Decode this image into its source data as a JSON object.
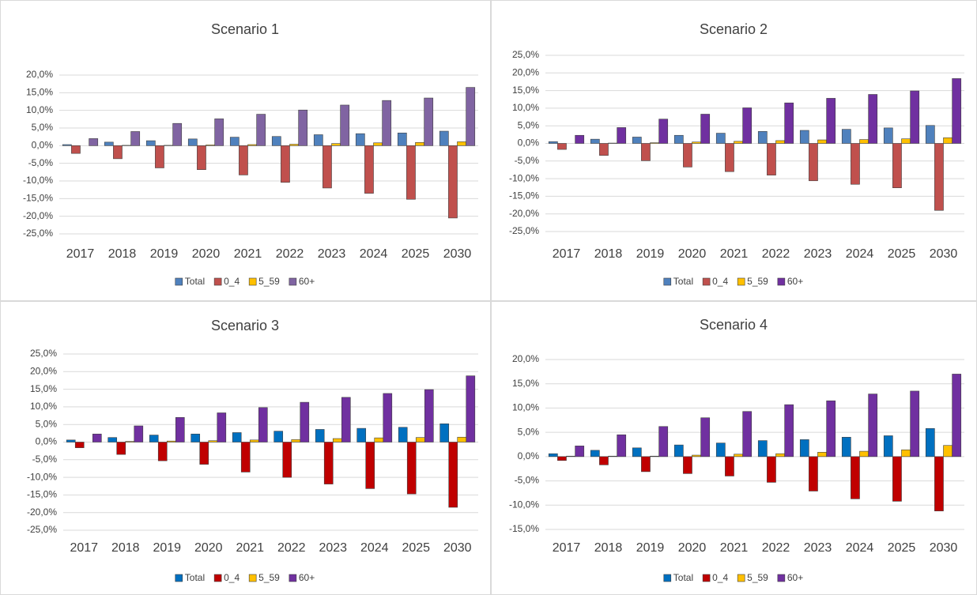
{
  "chart_data": [
    {
      "type": "bar",
      "title": "Scenario 1",
      "categories": [
        "2017",
        "2018",
        "2019",
        "2020",
        "2021",
        "2022",
        "2023",
        "2024",
        "2025",
        "2030"
      ],
      "series": [
        {
          "name": "Total",
          "color": "#4f81bd",
          "values": [
            0.3,
            1.0,
            1.4,
            1.9,
            2.4,
            2.6,
            3.1,
            3.4,
            3.6,
            4.1
          ]
        },
        {
          "name": "0_4",
          "color": "#c0504d",
          "values": [
            -2.2,
            -3.7,
            -6.3,
            -6.8,
            -8.3,
            -10.4,
            -12.0,
            -13.5,
            -15.2,
            -20.5
          ]
        },
        {
          "name": "5_59",
          "color": "#ffc000",
          "values": [
            0.0,
            0.1,
            0.1,
            0.2,
            0.3,
            0.4,
            0.6,
            0.8,
            0.9,
            1.1
          ]
        },
        {
          "name": "60+",
          "color": "#8064a2",
          "values": [
            2.0,
            4.0,
            6.3,
            7.6,
            8.9,
            10.1,
            11.5,
            12.8,
            13.5,
            16.5
          ]
        }
      ],
      "ylim": [
        -25,
        20
      ],
      "yticks": [
        {
          "value": -25,
          "label": "-25,0%"
        },
        {
          "value": -20,
          "label": "-20,0%"
        },
        {
          "value": -15,
          "label": "-15,0%"
        },
        {
          "value": -10,
          "label": "-10,0%"
        },
        {
          "value": -5,
          "label": "-5,0%"
        },
        {
          "value": 0,
          "label": "0,0%"
        },
        {
          "value": 5,
          "label": "5,0%"
        },
        {
          "value": 10,
          "label": "10,0%"
        },
        {
          "value": 15,
          "label": "15,0%"
        },
        {
          "value": 20,
          "label": "20,0%"
        }
      ],
      "grid": true,
      "legend": "bottom"
    },
    {
      "type": "bar",
      "title": "Scenario 2",
      "categories": [
        "2017",
        "2018",
        "2019",
        "2020",
        "2021",
        "2022",
        "2023",
        "2024",
        "2025",
        "2030"
      ],
      "series": [
        {
          "name": "Total",
          "color": "#4f81bd",
          "values": [
            0.5,
            1.2,
            1.8,
            2.3,
            2.9,
            3.4,
            3.7,
            4.0,
            4.4,
            5.1
          ]
        },
        {
          "name": "0_4",
          "color": "#c0504d",
          "values": [
            -1.7,
            -3.4,
            -4.9,
            -6.7,
            -8.0,
            -9.0,
            -10.6,
            -11.6,
            -12.6,
            -19.0
          ]
        },
        {
          "name": "5_59",
          "color": "#ffc000",
          "values": [
            0.0,
            0.1,
            0.2,
            0.4,
            0.6,
            0.8,
            1.0,
            1.1,
            1.3,
            1.6
          ]
        },
        {
          "name": "60+",
          "color": "#7030a0",
          "values": [
            2.3,
            4.5,
            6.9,
            8.3,
            10.1,
            11.5,
            12.8,
            13.9,
            14.9,
            18.4
          ]
        }
      ],
      "ylim": [
        -25,
        25
      ],
      "yticks": [
        {
          "value": -25,
          "label": "-25,0%"
        },
        {
          "value": -20,
          "label": "-20,0%"
        },
        {
          "value": -15,
          "label": "-15,0%"
        },
        {
          "value": -10,
          "label": "-10,0%"
        },
        {
          "value": -5,
          "label": "-5,0%"
        },
        {
          "value": 0,
          "label": "0,0%"
        },
        {
          "value": 5,
          "label": "5,0%"
        },
        {
          "value": 10,
          "label": "10,0%"
        },
        {
          "value": 15,
          "label": "15,0%"
        },
        {
          "value": 20,
          "label": "20,0%"
        },
        {
          "value": 25,
          "label": "25,0%"
        }
      ],
      "grid": true,
      "legend": "bottom"
    },
    {
      "type": "bar",
      "title": "Scenario 3",
      "categories": [
        "2017",
        "2018",
        "2019",
        "2020",
        "2021",
        "2022",
        "2023",
        "2024",
        "2025",
        "2030"
      ],
      "series": [
        {
          "name": "Total",
          "color": "#0070c0",
          "values": [
            0.6,
            1.3,
            2.0,
            2.3,
            2.7,
            3.1,
            3.6,
            3.9,
            4.2,
            5.2
          ]
        },
        {
          "name": "0_4",
          "color": "#c00000",
          "values": [
            -1.6,
            -3.5,
            -5.3,
            -6.3,
            -8.5,
            -10.0,
            -11.9,
            -13.2,
            -14.7,
            -18.5
          ]
        },
        {
          "name": "5_59",
          "color": "#ffc000",
          "values": [
            0.0,
            0.2,
            0.3,
            0.4,
            0.6,
            0.7,
            1.0,
            1.2,
            1.3,
            1.4
          ]
        },
        {
          "name": "60+",
          "color": "#7030a0",
          "values": [
            2.3,
            4.6,
            7.0,
            8.3,
            9.8,
            11.3,
            12.7,
            13.8,
            14.9,
            18.8
          ]
        }
      ],
      "ylim": [
        -25,
        25
      ],
      "yticks": [
        {
          "value": -25,
          "label": "-25,0%"
        },
        {
          "value": -20,
          "label": "-20,0%"
        },
        {
          "value": -15,
          "label": "-15,0%"
        },
        {
          "value": -10,
          "label": "-10,0%"
        },
        {
          "value": -5,
          "label": "-5,0%"
        },
        {
          "value": 0,
          "label": "0,0%"
        },
        {
          "value": 5,
          "label": "5,0%"
        },
        {
          "value": 10,
          "label": "10,0%"
        },
        {
          "value": 15,
          "label": "15,0%"
        },
        {
          "value": 20,
          "label": "20,0%"
        },
        {
          "value": 25,
          "label": "25,0%"
        }
      ],
      "grid": true,
      "legend": "bottom"
    },
    {
      "type": "bar",
      "title": "Scenario 4",
      "categories": [
        "2017",
        "2018",
        "2019",
        "2020",
        "2021",
        "2022",
        "2023",
        "2024",
        "2025",
        "2030"
      ],
      "series": [
        {
          "name": "Total",
          "color": "#0070c0",
          "values": [
            0.6,
            1.3,
            1.8,
            2.4,
            2.8,
            3.3,
            3.5,
            4.0,
            4.3,
            5.8
          ]
        },
        {
          "name": "0_4",
          "color": "#c00000",
          "values": [
            -0.8,
            -1.7,
            -3.1,
            -3.5,
            -4.0,
            -5.3,
            -7.1,
            -8.7,
            -9.2,
            -11.2
          ]
        },
        {
          "name": "5_59",
          "color": "#ffc000",
          "values": [
            0.1,
            0.1,
            0.1,
            0.3,
            0.5,
            0.6,
            0.9,
            1.1,
            1.4,
            2.3
          ]
        },
        {
          "name": "60+",
          "color": "#7030a0",
          "values": [
            2.2,
            4.5,
            6.2,
            8.0,
            9.3,
            10.7,
            11.5,
            12.9,
            13.5,
            17.0
          ]
        }
      ],
      "ylim": [
        -15,
        20
      ],
      "yticks": [
        {
          "value": -15,
          "label": "-15,0%"
        },
        {
          "value": -10,
          "label": "-10,0%"
        },
        {
          "value": -5,
          "label": "-5,0%"
        },
        {
          "value": 0,
          "label": "0,0%"
        },
        {
          "value": 5,
          "label": "5,0%"
        },
        {
          "value": 10,
          "label": "10,0%"
        },
        {
          "value": 15,
          "label": "15,0%"
        },
        {
          "value": 20,
          "label": "20,0%"
        }
      ],
      "grid": true,
      "legend": "bottom"
    }
  ]
}
